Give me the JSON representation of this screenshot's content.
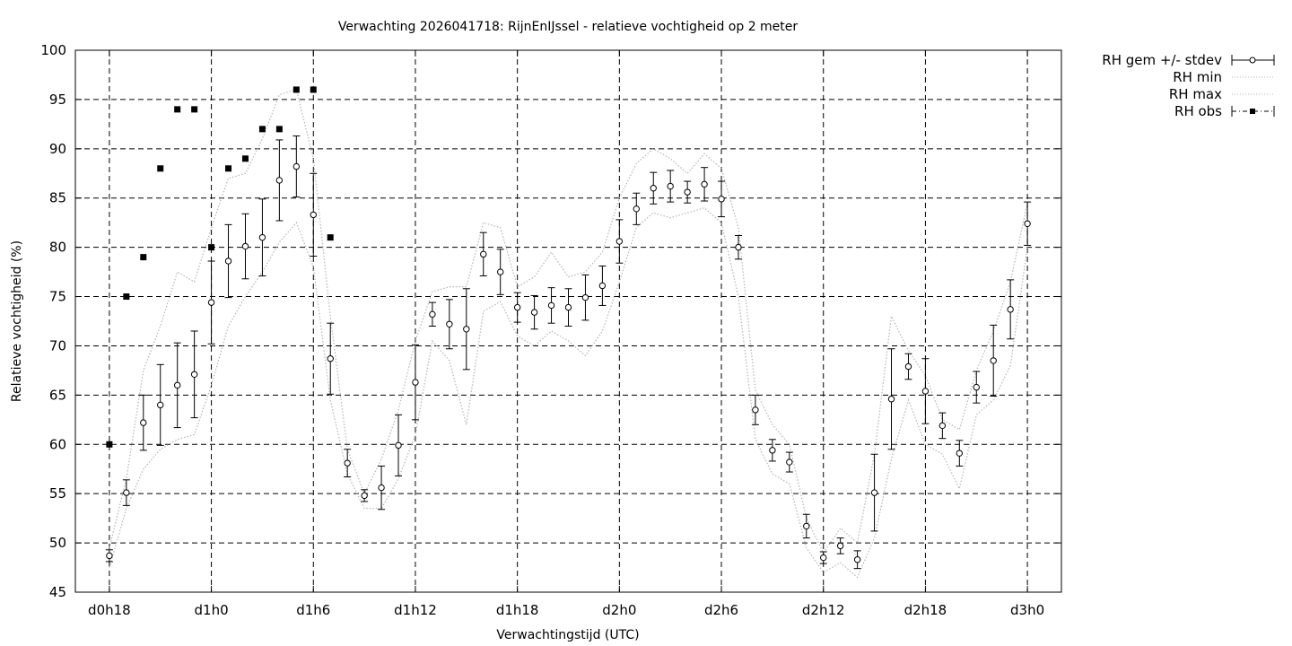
{
  "chart_data": {
    "type": "line",
    "title": "Verwachting 2026041718: RijnEnIJssel - relatieve vochtigheid op 2 meter",
    "xlabel": "Verwachtingstijd (UTC)",
    "ylabel": "Relatieve vochtigheid (%)",
    "ylim": [
      45,
      100
    ],
    "xlim": [
      -2,
      56
    ],
    "grid": true,
    "legend_position": "outside-top-right",
    "x_tick_labels": [
      "d0h18",
      "d1h0",
      "d1h6",
      "d1h12",
      "d1h18",
      "d2h0",
      "d2h6",
      "d2h12",
      "d2h18",
      "d3h0"
    ],
    "y_ticks": [
      45,
      50,
      55,
      60,
      65,
      70,
      75,
      80,
      85,
      90,
      95,
      100
    ],
    "legend": [
      "RH gem +/- stdev",
      "RH min",
      "RH max",
      "RH obs"
    ],
    "series": [
      {
        "name": "RH gem +/- stdev",
        "style": "points-with-errorbars",
        "x": [
          0,
          1,
          2,
          3,
          4,
          5,
          6,
          7,
          8,
          9,
          10,
          11,
          12,
          13,
          14,
          15,
          16,
          17,
          18,
          19,
          20,
          21,
          22,
          23,
          24,
          25,
          26,
          27,
          28,
          29,
          30,
          31,
          32,
          33,
          34,
          35,
          36,
          37,
          38,
          39,
          40,
          41,
          42,
          43,
          44,
          45,
          46,
          47,
          48,
          49,
          50,
          51,
          52,
          53,
          54
        ],
        "values": [
          48.7,
          55.1,
          62.2,
          64.0,
          66.0,
          67.1,
          74.4,
          78.6,
          80.1,
          81.0,
          86.8,
          88.2,
          83.3,
          68.7,
          58.1,
          54.8,
          55.6,
          59.9,
          66.3,
          73.2,
          72.2,
          71.7,
          79.3,
          77.5,
          73.9,
          73.4,
          74.1,
          73.9,
          74.9,
          76.1,
          80.6,
          83.9,
          86.0,
          86.2,
          85.6,
          86.4,
          84.9,
          80.0,
          63.5,
          59.4,
          58.2,
          51.7,
          48.5,
          49.7,
          48.3,
          55.1,
          64.6,
          67.9,
          65.4,
          61.9,
          59.1,
          65.8,
          68.5,
          73.7,
          82.4
        ],
        "stdev": [
          0.6,
          1.3,
          2.8,
          4.1,
          4.3,
          4.4,
          4.2,
          3.7,
          3.3,
          3.9,
          4.1,
          3.1,
          4.2,
          3.6,
          1.4,
          0.6,
          2.2,
          3.1,
          3.8,
          1.2,
          2.5,
          4.1,
          2.2,
          2.3,
          1.5,
          1.7,
          1.8,
          1.9,
          2.3,
          2.0,
          2.2,
          1.6,
          1.6,
          1.6,
          1.1,
          1.7,
          1.8,
          1.2,
          1.5,
          1.1,
          1.0,
          1.2,
          0.6,
          0.8,
          0.9,
          3.9,
          5.1,
          1.3,
          3.3,
          1.3,
          1.3,
          1.6,
          3.6,
          3.0,
          2.2
        ],
        "color": "#000000"
      },
      {
        "name": "RH min",
        "style": "dotted",
        "x": [
          0,
          1,
          2,
          3,
          4,
          5,
          6,
          7,
          8,
          9,
          10,
          11,
          12,
          13,
          14,
          15,
          16,
          17,
          18,
          19,
          20,
          21,
          22,
          23,
          24,
          25,
          26,
          27,
          28,
          29,
          30,
          31,
          32,
          33,
          34,
          35,
          36,
          37,
          38,
          39,
          40,
          41,
          42,
          43,
          44,
          45,
          46,
          47,
          48,
          49,
          50,
          51,
          52,
          53,
          54
        ],
        "values": [
          47.5,
          53.5,
          57.5,
          59.5,
          60.5,
          61.0,
          66.0,
          72.0,
          75.0,
          77.5,
          80.5,
          82.5,
          78.0,
          64.5,
          57.0,
          53.5,
          53.5,
          56.5,
          61.0,
          70.5,
          68.5,
          62.0,
          73.5,
          74.5,
          71.0,
          70.0,
          71.5,
          70.5,
          69.0,
          71.5,
          76.5,
          82.0,
          83.5,
          83.0,
          83.5,
          84.0,
          82.5,
          75.0,
          60.5,
          57.0,
          56.0,
          49.5,
          47.0,
          48.0,
          46.5,
          50.5,
          58.5,
          64.5,
          60.0,
          59.0,
          55.5,
          63.0,
          64.5,
          68.0,
          80.0
        ],
        "color": "#b4b4b4"
      },
      {
        "name": "RH max",
        "style": "dotted",
        "x": [
          0,
          1,
          2,
          3,
          4,
          5,
          6,
          7,
          8,
          9,
          10,
          11,
          12,
          13,
          14,
          15,
          16,
          17,
          18,
          19,
          20,
          21,
          22,
          23,
          24,
          25,
          26,
          27,
          28,
          29,
          30,
          31,
          32,
          33,
          34,
          35,
          36,
          37,
          38,
          39,
          40,
          41,
          42,
          43,
          44,
          45,
          46,
          47,
          48,
          49,
          50,
          51,
          52,
          53,
          54
        ],
        "values": [
          49.5,
          56.5,
          67.5,
          72.0,
          77.5,
          76.5,
          82.0,
          87.0,
          87.5,
          91.0,
          95.5,
          96.0,
          89.0,
          73.0,
          59.5,
          55.0,
          58.5,
          63.5,
          70.5,
          75.5,
          76.0,
          76.0,
          82.5,
          82.0,
          76.0,
          77.0,
          79.5,
          77.0,
          77.5,
          79.5,
          85.0,
          88.5,
          90.0,
          89.0,
          87.5,
          89.5,
          88.0,
          82.0,
          65.5,
          62.0,
          60.0,
          52.5,
          49.0,
          51.5,
          50.0,
          59.0,
          73.0,
          69.5,
          67.0,
          62.5,
          61.5,
          67.5,
          71.5,
          76.5,
          84.5
        ],
        "color": "#b4b4b4"
      },
      {
        "name": "RH obs",
        "style": "filled-squares",
        "x": [
          0,
          1,
          2,
          3,
          4,
          5,
          6,
          7,
          8,
          9,
          10,
          11,
          12,
          13
        ],
        "values": [
          60,
          75,
          79,
          88,
          94,
          94,
          80,
          88,
          89,
          92,
          92,
          96,
          96,
          81
        ],
        "color": "#000000"
      }
    ]
  }
}
